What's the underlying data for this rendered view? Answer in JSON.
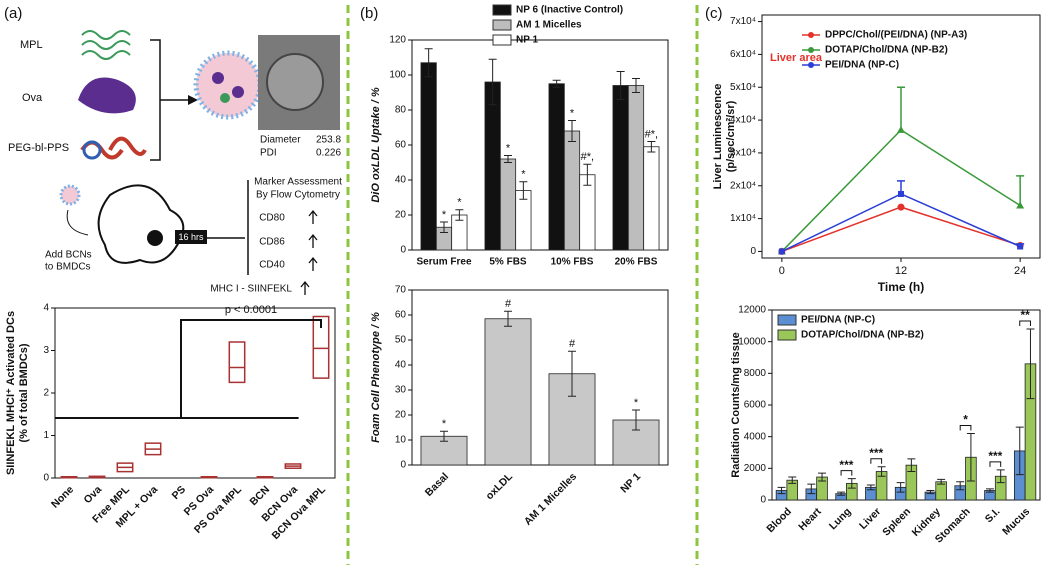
{
  "panel_labels": [
    "(a)",
    "(b)",
    "(c)"
  ],
  "illustration": {
    "mpl": "MPL",
    "ova": "Ova",
    "peg": "PEG-bl-PPS",
    "diameter": "Diameter",
    "diameter_value": "253.8",
    "pdi": "PDI",
    "pdi_value": "0.226",
    "marker_title": [
      "Marker Assessment",
      "By Flow Cytometry"
    ],
    "markers": [
      "CD80",
      "CD86",
      "CD40",
      "MHC I - SIINFEKL"
    ],
    "time": "16 hrs",
    "add": [
      "Add BCNs",
      "to BMDCs"
    ]
  },
  "chart_data": [
    {
      "type": "box",
      "ylabel": [
        "SIINFEKL MHCI⁺ Activated DCs",
        "(% of total BMDCs)"
      ],
      "annotation": "p < 0.0001",
      "color": "#a83232",
      "categories": [
        "None",
        "Ova",
        "Free MPL",
        "MPL + Ova",
        "PS",
        "PS Ova",
        "PS Ova MPL",
        "BCN",
        "BCN Ova",
        "BCN Ova MPL"
      ],
      "low": [
        0.01,
        0.01,
        0.15,
        0.55,
        null,
        0.01,
        2.25,
        0.01,
        0.23,
        2.35
      ],
      "median": [
        0.02,
        0.02,
        0.25,
        0.68,
        null,
        0.02,
        2.6,
        0.02,
        0.28,
        3.05
      ],
      "high": [
        0.03,
        0.04,
        0.35,
        0.82,
        null,
        0.03,
        3.2,
        0.03,
        0.33,
        3.8
      ],
      "ylim": [
        0,
        4
      ],
      "yticks": [
        0,
        1,
        2,
        3,
        4
      ]
    },
    {
      "type": "bar",
      "ylabel": "DiO oxLDL Uptake / %",
      "legend": "top-right",
      "categories": [
        "Serum Free",
        "5% FBS",
        "10% FBS",
        "20% FBS"
      ],
      "series": [
        {
          "name": "NP 6 (Inactive Control)",
          "color": "#111111",
          "values": [
            107,
            96,
            95,
            94
          ],
          "errors": [
            8,
            13,
            2,
            8
          ]
        },
        {
          "name": "AM 1 Micelles",
          "color": "#bdbdbd",
          "values": [
            13,
            52,
            68,
            94
          ],
          "errors": [
            3,
            2,
            6,
            4
          ],
          "annotations": [
            "*",
            "*",
            "*",
            null
          ]
        },
        {
          "name": "NP 1",
          "color": "#ffffff",
          "values": [
            20,
            34,
            43,
            59
          ],
          "errors": [
            3,
            5,
            6,
            3
          ],
          "annotations": [
            "*",
            "*",
            "#*,",
            "#*,"
          ]
        }
      ],
      "ylim": [
        0,
        120
      ],
      "yticks": [
        0,
        20,
        40,
        60,
        80,
        100,
        120
      ]
    },
    {
      "type": "bar",
      "ylabel": "Foam Cell Phenotype / %",
      "color": "#c8c8c8",
      "categories": [
        "Basal",
        "oxLDL",
        "AM 1 Micelles",
        "NP 1"
      ],
      "values": [
        11.5,
        58.5,
        36.5,
        18
      ],
      "errors": [
        2,
        3,
        9,
        4
      ],
      "annotations": [
        "*",
        "#",
        "#",
        "*"
      ],
      "ylim": [
        0,
        70
      ],
      "yticks": [
        0,
        10,
        20,
        30,
        40,
        50,
        60,
        70
      ]
    },
    {
      "type": "line",
      "ylabel": [
        "Liver Luminescence",
        "(p/sec/cm²/sr)"
      ],
      "xlabel": "Time (h)",
      "annotation": "Liver area",
      "legend": "top-right",
      "x": [
        0,
        12,
        24
      ],
      "series": [
        {
          "name": "DPPC/Chol/(PEI/DNA) (NP-A3)",
          "color": "#e3322b",
          "marker": "o",
          "values": [
            0,
            13500,
            1800
          ]
        },
        {
          "name": "DOTAP/Chol/DNA (NP-B2)",
          "color": "#3a9a3a",
          "marker": "^",
          "values": [
            0,
            37000,
            14000
          ],
          "errors": [
            0,
            13000,
            9000
          ]
        },
        {
          "name": "PEI/DNA (NP-C)",
          "color": "#2a3fd6",
          "marker": "s",
          "values": [
            0,
            17500,
            1500
          ],
          "errors": [
            0,
            4000,
            800
          ]
        }
      ],
      "xlim": [
        -2,
        26
      ],
      "xticks": [
        0,
        12,
        24
      ],
      "ylim": [
        -2000,
        72000
      ],
      "yticks": [
        0,
        {
          "value": 10000,
          "label": "1x10⁴"
        },
        {
          "value": 20000,
          "label": "2x10⁴"
        },
        {
          "value": 30000,
          "label": "3x10⁴"
        },
        {
          "value": 40000,
          "label": "4x10⁴"
        },
        {
          "value": 50000,
          "label": "5x10⁴"
        },
        {
          "value": 60000,
          "label": "6x10⁴"
        },
        {
          "value": 70000,
          "label": "7x10⁴"
        }
      ]
    },
    {
      "type": "bar",
      "ylabel": "Radiation Counts/mg tissue",
      "legend": "top-left",
      "categories": [
        "Blood",
        "Heart",
        "Lung",
        "Liver",
        "Spleen",
        "Kidney",
        "Stomach",
        "S.I.",
        "Mucus"
      ],
      "series": [
        {
          "name": "PEI/DNA (NP-C)",
          "color": "#5b8fd1",
          "values": [
            600,
            700,
            400,
            800,
            800,
            500,
            900,
            600,
            3100
          ],
          "errors": [
            200,
            300,
            100,
            150,
            300,
            100,
            250,
            100,
            1500
          ]
        },
        {
          "name": "DOTAP/Chol/DNA (NP-B2)",
          "color": "#9bc75a",
          "values": [
            1250,
            1450,
            1050,
            1800,
            2200,
            1150,
            2700,
            1500,
            8600
          ],
          "errors": [
            200,
            250,
            300,
            300,
            400,
            150,
            1500,
            400,
            2200
          ]
        }
      ],
      "significance": [
        null,
        null,
        "***",
        "***",
        null,
        null,
        "*",
        "***",
        "**"
      ],
      "ylim": [
        0,
        12000
      ],
      "yticks": [
        0,
        2000,
        4000,
        6000,
        8000,
        10000,
        12000
      ]
    }
  ]
}
